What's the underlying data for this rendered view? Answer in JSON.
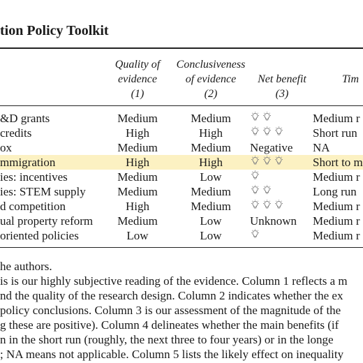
{
  "title": "tion Policy Toolkit",
  "table": {
    "header": [
      [
        "Quality of",
        "evidence",
        "(1)"
      ],
      [
        "Conclusiveness",
        "of evidence",
        "(2)"
      ],
      [
        "Net benefit",
        "(3)"
      ],
      [
        "Tim"
      ]
    ],
    "rows": [
      [
        "&D grants",
        "Medium",
        "Medium",
        2,
        "Medium r"
      ],
      [
        "credits",
        "High",
        "High",
        3,
        "Short run"
      ],
      [
        "ox",
        "Medium",
        "Medium",
        "Negative",
        "NA"
      ],
      [
        "mmigration",
        "High",
        "High",
        3,
        "Short to m"
      ],
      [
        "ies: incentives",
        "Medium",
        "Low",
        1,
        "Medium r"
      ],
      [
        "ies: STEM supply",
        "Medium",
        "Medium",
        2,
        "Long run"
      ],
      [
        "d competition",
        "High",
        "Medium",
        3,
        "Medium r"
      ],
      [
        "ual property reform",
        "Medium",
        "Low",
        "Unknown",
        "Medium r"
      ],
      [
        "oriented policies",
        "Low",
        "Low",
        1,
        "Medium r"
      ]
    ]
  },
  "notes": {
    "source": "he authors.",
    "lines": [
      "is is our highly subjective reading of the evidence. Column 1 reflects a m",
      "nd the quality of the research design. Column 2 indicates whether the ex",
      "policy conclusions. Column 3 is our assessment of the magnitude of the",
      "g these are positive). Column 4 delineates whether the main benefits (if",
      "n in the short run (roughly, the next three to four years) or in the longe",
      "; NA means not applicable. Column 5 lists the likely effect on inequality"
    ]
  }
}
